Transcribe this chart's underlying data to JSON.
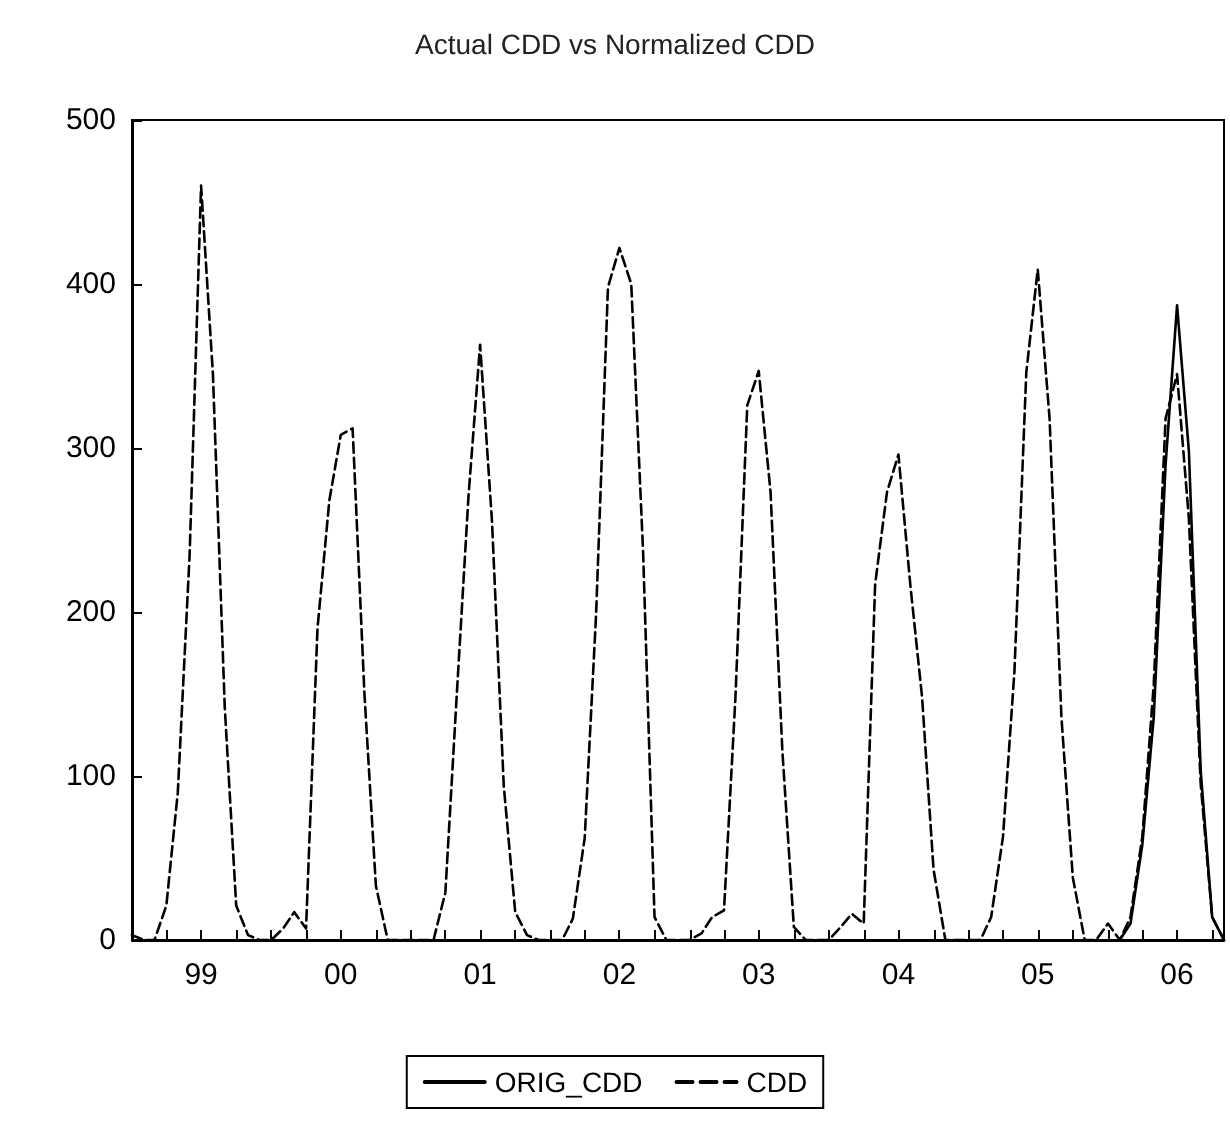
{
  "chart_data": {
    "type": "line",
    "title": "Actual CDD vs Normalized CDD",
    "marker": "none",
    "legend": "bottom",
    "grid": false,
    "xlim": [
      "1999-01",
      "2006-11"
    ],
    "xticks": [
      {
        "value": "1999-04",
        "label": null
      },
      {
        "value": "1999-07",
        "label": "99"
      },
      {
        "value": "1999-10",
        "label": null
      },
      {
        "value": "2000-01",
        "label": null
      },
      {
        "value": "2000-04",
        "label": null
      },
      {
        "value": "2000-07",
        "label": "00"
      },
      {
        "value": "2000-10",
        "label": null
      },
      {
        "value": "2001-01",
        "label": null
      },
      {
        "value": "2001-04",
        "label": null
      },
      {
        "value": "2001-07",
        "label": "01"
      },
      {
        "value": "2001-10",
        "label": null
      },
      {
        "value": "2002-01",
        "label": null
      },
      {
        "value": "2002-04",
        "label": null
      },
      {
        "value": "2002-07",
        "label": "02"
      },
      {
        "value": "2002-10",
        "label": null
      },
      {
        "value": "2003-01",
        "label": null
      },
      {
        "value": "2003-04",
        "label": null
      },
      {
        "value": "2003-07",
        "label": "03"
      },
      {
        "value": "2003-10",
        "label": null
      },
      {
        "value": "2004-01",
        "label": null
      },
      {
        "value": "2004-04",
        "label": null
      },
      {
        "value": "2004-07",
        "label": "04"
      },
      {
        "value": "2004-10",
        "label": null
      },
      {
        "value": "2005-01",
        "label": null
      },
      {
        "value": "2005-04",
        "label": null
      },
      {
        "value": "2005-07",
        "label": "05"
      },
      {
        "value": "2005-10",
        "label": null
      },
      {
        "value": "2006-01",
        "label": null
      },
      {
        "value": "2006-04",
        "label": null
      },
      {
        "value": "2006-07",
        "label": "06"
      },
      {
        "value": "2006-10",
        "label": null
      }
    ],
    "ylim": [
      0,
      500
    ],
    "yticks": [
      0,
      100,
      200,
      300,
      400,
      500
    ],
    "series": [
      {
        "name": "ORIG_CDD",
        "color": "#000000",
        "line_style": "solid",
        "x": [
          "2006-02",
          "2006-03",
          "2006-04",
          "2006-05",
          "2006-06",
          "2006-07",
          "2006-08",
          "2006-09",
          "2006-10",
          "2006-11"
        ],
        "values": [
          0,
          10,
          58,
          136,
          290,
          387,
          298,
          103,
          14,
          0
        ]
      },
      {
        "name": "CDD",
        "color": "#000000",
        "line_style": "dashed",
        "x": [
          "1999-01",
          "1999-02",
          "1999-03",
          "1999-04",
          "1999-05",
          "1999-06",
          "1999-07",
          "1999-08",
          "1999-09",
          "1999-10",
          "1999-11",
          "1999-12",
          "2000-01",
          "2000-02",
          "2000-03",
          "2000-04",
          "2000-05",
          "2000-06",
          "2000-07",
          "2000-08",
          "2000-09",
          "2000-10",
          "2000-11",
          "2000-12",
          "2001-01",
          "2001-02",
          "2001-03",
          "2001-04",
          "2001-05",
          "2001-06",
          "2001-07",
          "2001-08",
          "2001-09",
          "2001-10",
          "2001-11",
          "2001-12",
          "2002-01",
          "2002-02",
          "2002-03",
          "2002-04",
          "2002-05",
          "2002-06",
          "2002-07",
          "2002-08",
          "2002-09",
          "2002-10",
          "2002-11",
          "2002-12",
          "2003-01",
          "2003-02",
          "2003-03",
          "2003-04",
          "2003-05",
          "2003-06",
          "2003-07",
          "2003-08",
          "2003-09",
          "2003-10",
          "2003-11",
          "2003-12",
          "2004-01",
          "2004-02",
          "2004-03",
          "2004-04",
          "2004-05",
          "2004-06",
          "2004-07",
          "2004-08",
          "2004-09",
          "2004-10",
          "2004-11",
          "2004-12",
          "2005-01",
          "2005-02",
          "2005-03",
          "2005-04",
          "2005-05",
          "2005-06",
          "2005-07",
          "2005-08",
          "2005-09",
          "2005-10",
          "2005-11",
          "2005-12",
          "2006-01",
          "2006-02",
          "2006-03",
          "2006-04",
          "2006-05",
          "2006-06",
          "2006-07",
          "2006-08",
          "2006-09",
          "2006-10",
          "2006-11"
        ],
        "values": [
          3,
          0,
          0,
          21,
          90,
          235,
          460,
          345,
          142,
          21,
          3,
          0,
          0,
          7,
          17,
          7,
          190,
          268,
          308,
          312,
          150,
          33,
          0,
          0,
          0,
          0,
          0,
          29,
          150,
          272,
          363,
          256,
          94,
          17,
          3,
          0,
          0,
          0,
          13,
          62,
          199,
          398,
          422,
          400,
          237,
          14,
          0,
          0,
          0,
          4,
          14,
          18,
          148,
          326,
          347,
          273,
          115,
          8,
          0,
          0,
          0,
          8,
          16,
          10,
          217,
          273,
          296,
          217,
          148,
          43,
          0,
          0,
          0,
          0,
          14,
          63,
          164,
          346,
          409,
          318,
          136,
          38,
          0,
          0,
          10,
          0,
          14,
          63,
          156,
          318,
          345,
          257,
          95,
          14,
          0
        ]
      }
    ]
  }
}
